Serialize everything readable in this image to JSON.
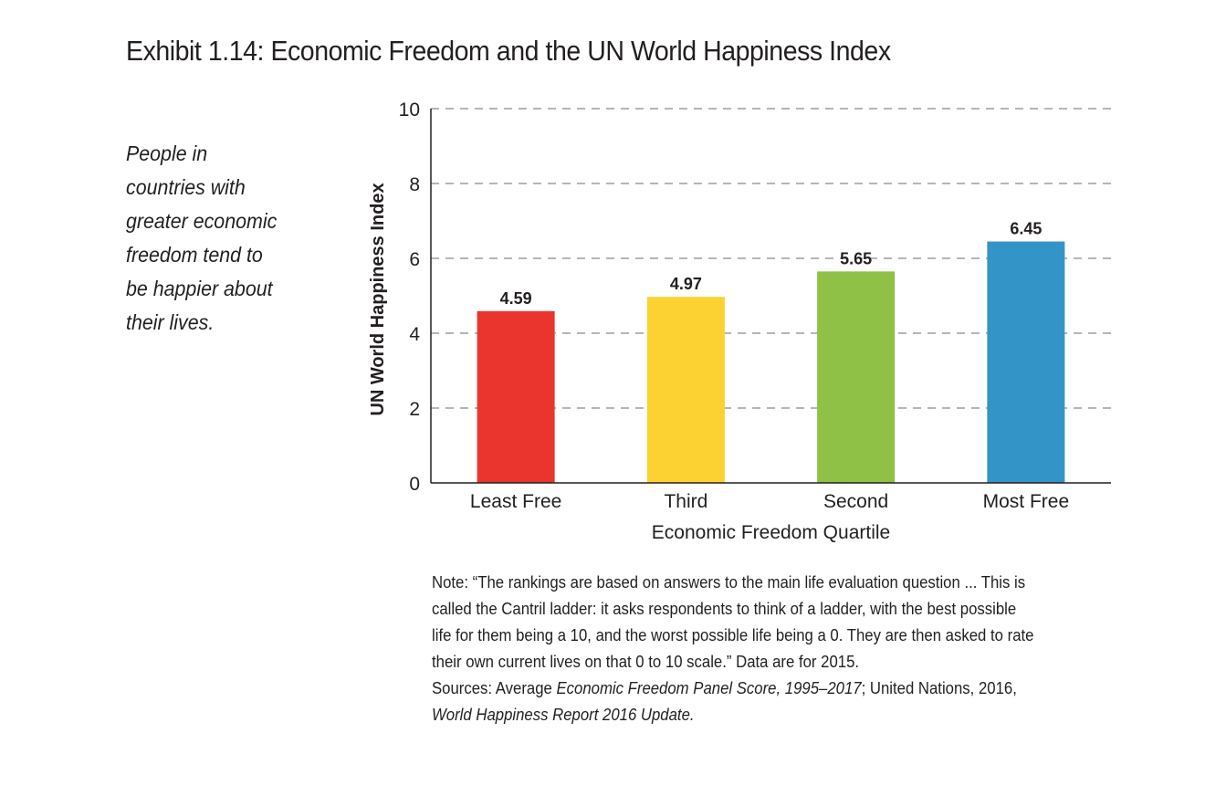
{
  "title": "Exhibit 1.14: Economic Freedom and the UN World Happiness Index",
  "side_text_lines": [
    "People in",
    "countries with",
    "greater economic",
    "freedom tend to",
    "be happier about",
    "their lives."
  ],
  "note": {
    "lines": [
      "Note: “The rankings are based on answers to the main life evaluation question ... This is",
      "called the Cantril ladder: it asks respondents to think of a ladder, with the best possible",
      "life for them being a 10, and the worst possible life being a 0. They are then asked to rate",
      "their own current lives on that 0 to 10 scale.” Data are for 2015."
    ],
    "sources_prefix": "Sources: Average ",
    "sources_italic_1": "Economic Freedom Panel Score, 1995–2017",
    "sources_mid": "; United Nations, 2016,",
    "sources_italic_2": "World Happiness Report 2016 Update."
  },
  "chart_data": {
    "type": "bar",
    "title": "Exhibit 1.14: Economic Freedom and the UN World Happiness Index",
    "xlabel": "Economic Freedom Quartile",
    "ylabel": "UN World Happiness Index",
    "categories": [
      "Least Free",
      "Third",
      "Second",
      "Most Free"
    ],
    "values": [
      4.59,
      4.97,
      5.65,
      6.45
    ],
    "value_labels": [
      "4.59",
      "4.97",
      "5.65",
      "6.45"
    ],
    "colors": [
      "#ea342e",
      "#fcd232",
      "#8fc147",
      "#3394c8"
    ],
    "ylim": [
      0,
      10
    ],
    "yticks": [
      0,
      2,
      4,
      6,
      8,
      10
    ],
    "grid": "dashed horizontal",
    "legend": "none"
  }
}
